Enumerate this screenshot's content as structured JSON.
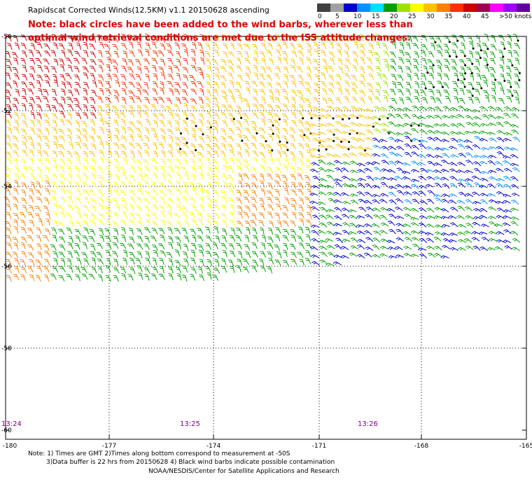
{
  "header": {
    "title": "Rapidscat Corrected Winds(12.5KM) v1.1 20150628 ascending",
    "note_line1": "Note: black circles have been added to the wind barbs, wherever less than",
    "note_line2": "optimal wind retrieval conditions are met due to the ISS attitude changes."
  },
  "color_scale": {
    "colors": [
      "#404040",
      "#a0a0a0",
      "#0000d0",
      "#0090ff",
      "#00e0ff",
      "#00a000",
      "#a0e000",
      "#ffff00",
      "#ffc000",
      "#ff8000",
      "#ff3000",
      "#d00000",
      "#a00050",
      "#ff00ff",
      "#a000ff",
      "#6000a0"
    ],
    "labels": [
      "0",
      "5",
      "10",
      "15",
      "20",
      "25",
      "30",
      "35",
      "40",
      "45",
      ">50 knots"
    ]
  },
  "map": {
    "lat_labels": [
      "-50",
      "-52",
      "-54",
      "-56",
      "-58",
      "-60"
    ],
    "lon_labels": [
      "-180",
      "-177",
      "-174",
      "-171",
      "-168",
      "-165"
    ],
    "time_labels": [
      "13:24",
      "13:25",
      "13:26"
    ]
  },
  "footer": {
    "line1": "Note: 1) Times are GMT 2)Times along bottom correspond to measurement at -50S",
    "line2": "3)Data buffer is 22 hrs from 20150628 4) Black wind barbs indicate possible contamination",
    "line3": "NOAA/NESDIS/Center for Satellite Applications and Research"
  }
}
